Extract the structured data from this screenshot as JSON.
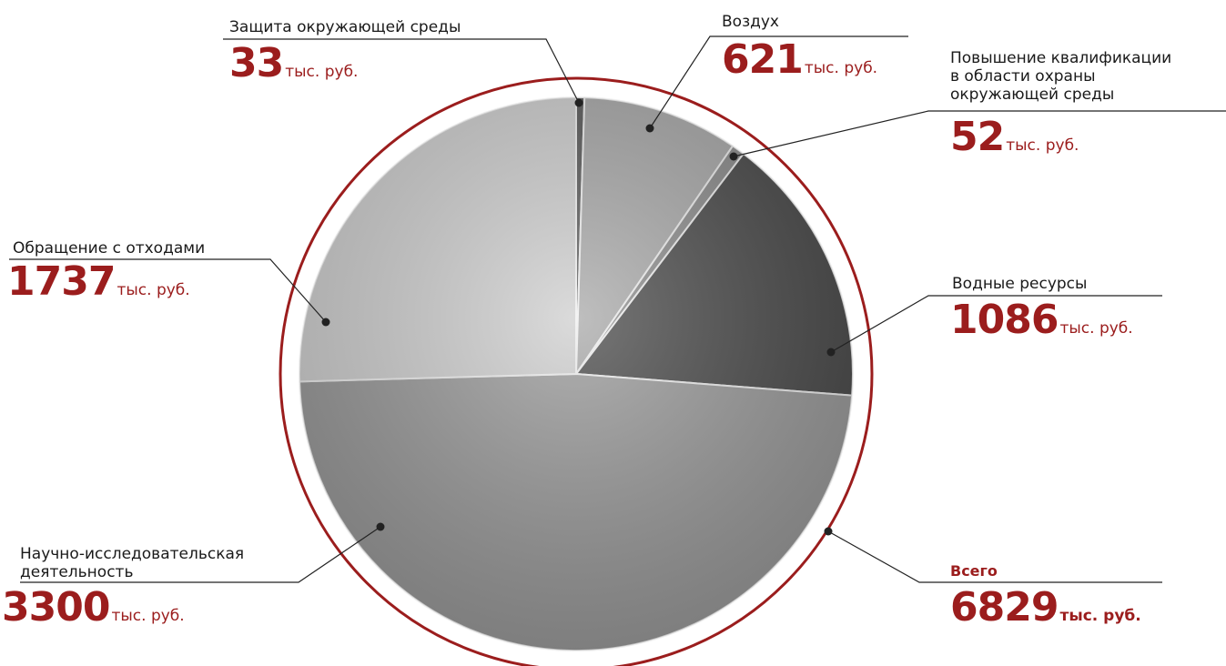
{
  "chart_data": {
    "type": "pie",
    "unit": "тыс. руб.",
    "slices": [
      {
        "label": "Защита окружающей среды",
        "value": 33,
        "color": "#5a5a5a"
      },
      {
        "label": "Воздух",
        "value": 621,
        "color": "#a9a9a9"
      },
      {
        "label": "Повышение квалификации в области охраны окружающей среды",
        "value": 52,
        "color": "#8c8c8c"
      },
      {
        "label": "Водные ресурсы",
        "value": 1086,
        "color": "#4a4a4a"
      },
      {
        "label": "Научно-исследовательская деятельность",
        "value": 3300,
        "color": "#9a9a9a"
      },
      {
        "label": "Обращение с отходами",
        "value": 1737,
        "color": "#cfcfcf"
      }
    ],
    "total": {
      "label": "Всего",
      "value": 6829
    },
    "ring_color": "#9b1d1d"
  },
  "labels": {
    "protection": {
      "line1": "Защита окружающей среды",
      "num": "33",
      "unit": "тыс. руб."
    },
    "air": {
      "line1": "Воздух",
      "num": "621",
      "unit": "тыс. руб."
    },
    "training": {
      "line1": "Повышение квалификации",
      "line2": "в области охраны",
      "line3": "окружающей среды",
      "num": "52",
      "unit": "тыс. руб."
    },
    "water": {
      "line1": "Водные ресурсы",
      "num": "1086",
      "unit": "тыс. руб."
    },
    "research": {
      "line1": "Научно-исследовательская",
      "line2": "деятельность",
      "num": "3300",
      "unit": "тыс. руб."
    },
    "waste": {
      "line1": "Обращение с отходами",
      "num": "1737",
      "unit": "тыс. руб."
    },
    "total": {
      "line1": "Всего",
      "num": "6829",
      "unit": "тыс. руб."
    }
  }
}
